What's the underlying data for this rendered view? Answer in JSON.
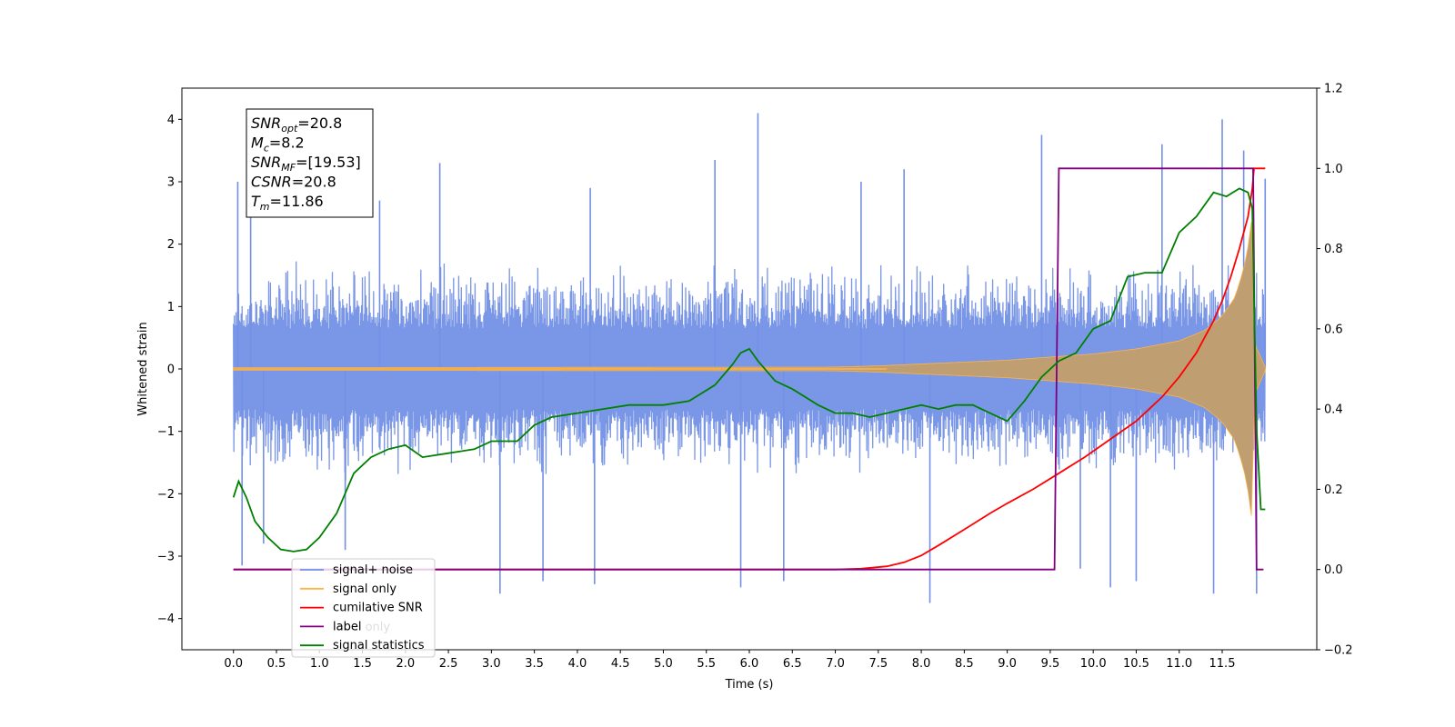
{
  "chart_data": {
    "type": "line",
    "xlabel": "Time (s)",
    "ylabel": "Whitened strain",
    "xlim": [
      -0.6,
      12.6
    ],
    "ylim": [
      -4.5,
      4.5
    ],
    "y2lim": [
      -0.2,
      1.2
    ],
    "x_ticks": [
      "0.0",
      "0.5",
      "1.0",
      "1.5",
      "2.0",
      "2.5",
      "3.0",
      "3.5",
      "4.0",
      "4.5",
      "5.0",
      "5.5",
      "6.0",
      "6.5",
      "7.0",
      "7.5",
      "8.0",
      "8.5",
      "9.0",
      "9.5",
      "10.0",
      "10.5",
      "11.0",
      "11.5"
    ],
    "y_ticks": [
      "4",
      "3",
      "2",
      "1",
      "0",
      "−1",
      "−2",
      "−3",
      "−4"
    ],
    "y2_ticks": [
      "1.2",
      "1.0",
      "0.8",
      "0.6",
      "0.4",
      "0.2",
      "0.0",
      "−0.2"
    ],
    "info_box": [
      {
        "base": "SNR",
        "sub": "opt",
        "value": "=20.8"
      },
      {
        "base": "M",
        "sub": "c",
        "value": "=8.2"
      },
      {
        "base": "SNR",
        "sub": "MF",
        "value": "=[19.53]"
      },
      {
        "base": "CSNR",
        "sub": "",
        "value": "=20.8"
      },
      {
        "base": "T",
        "sub": "m",
        "value": "=11.86"
      }
    ],
    "legend": {
      "placement": "lower-left",
      "entries": [
        {
          "label": "signal+ noise",
          "color": "#7390e6"
        },
        {
          "label": "signal only",
          "color": "#ffb347"
        },
        {
          "label": "cumilative SNR",
          "color": "#ff0000"
        },
        {
          "label": "label",
          "color": "#800080"
        },
        {
          "label": "signal statistics",
          "color": "#008000"
        }
      ],
      "hidden_label": "label only"
    },
    "series": [
      {
        "name": "signal+ noise",
        "axis": "left",
        "color": "#7390e6",
        "t_start": 0.0,
        "t_end": 12.0,
        "envelope": 1.85,
        "spikes": [
          {
            "x": 0.05,
            "y": 3.0
          },
          {
            "x": 0.1,
            "y": -3.15
          },
          {
            "x": 0.2,
            "y": 2.5
          },
          {
            "x": 0.35,
            "y": -2.8
          },
          {
            "x": 1.3,
            "y": -2.9
          },
          {
            "x": 1.7,
            "y": 2.7
          },
          {
            "x": 2.4,
            "y": 3.3
          },
          {
            "x": 3.1,
            "y": -3.6
          },
          {
            "x": 3.6,
            "y": -3.4
          },
          {
            "x": 4.15,
            "y": 2.9
          },
          {
            "x": 4.2,
            "y": -3.45
          },
          {
            "x": 5.6,
            "y": 3.35
          },
          {
            "x": 5.9,
            "y": -3.5
          },
          {
            "x": 6.1,
            "y": 4.1
          },
          {
            "x": 6.4,
            "y": -3.4
          },
          {
            "x": 7.3,
            "y": 3.0
          },
          {
            "x": 7.8,
            "y": 3.2
          },
          {
            "x": 8.1,
            "y": -3.75
          },
          {
            "x": 9.4,
            "y": 3.75
          },
          {
            "x": 9.85,
            "y": -3.2
          },
          {
            "x": 10.2,
            "y": -3.5
          },
          {
            "x": 10.5,
            "y": -3.4
          },
          {
            "x": 10.8,
            "y": 3.6
          },
          {
            "x": 11.4,
            "y": -3.6
          },
          {
            "x": 11.5,
            "y": 4.0
          },
          {
            "x": 11.75,
            "y": 3.5
          },
          {
            "x": 11.9,
            "y": -3.6
          },
          {
            "x": 12.0,
            "y": 3.05
          }
        ]
      },
      {
        "name": "signal only",
        "axis": "left",
        "color": "#ffb347",
        "amplitude": [
          [
            0.0,
            0.02
          ],
          [
            7.0,
            0.03
          ],
          [
            7.5,
            0.05
          ],
          [
            8.0,
            0.08
          ],
          [
            8.5,
            0.11
          ],
          [
            9.0,
            0.14
          ],
          [
            9.5,
            0.19
          ],
          [
            10.0,
            0.24
          ],
          [
            10.5,
            0.32
          ],
          [
            11.0,
            0.45
          ],
          [
            11.3,
            0.62
          ],
          [
            11.5,
            0.85
          ],
          [
            11.65,
            1.15
          ],
          [
            11.75,
            1.6
          ],
          [
            11.82,
            2.1
          ],
          [
            11.86,
            2.6
          ],
          [
            11.88,
            0.4
          ],
          [
            12.0,
            0.03
          ]
        ]
      },
      {
        "name": "cumilative SNR",
        "axis": "right",
        "color": "#ff0000",
        "x": [
          0.0,
          7.0,
          7.3,
          7.6,
          7.8,
          8.0,
          8.2,
          8.5,
          8.8,
          9.0,
          9.3,
          9.6,
          9.9,
          10.2,
          10.5,
          10.8,
          11.0,
          11.2,
          11.4,
          11.5,
          11.6,
          11.7,
          11.8,
          11.85,
          11.87,
          11.92,
          12.0
        ],
        "y": [
          0.0,
          0.0,
          0.002,
          0.008,
          0.018,
          0.035,
          0.06,
          0.1,
          0.14,
          0.165,
          0.2,
          0.24,
          0.28,
          0.325,
          0.37,
          0.43,
          0.48,
          0.54,
          0.62,
          0.67,
          0.73,
          0.8,
          0.88,
          0.95,
          1.0,
          1.0,
          1.0
        ]
      },
      {
        "name": "label",
        "axis": "right",
        "color": "#800080",
        "x": [
          0.0,
          9.55,
          9.6,
          11.86,
          11.9,
          11.98
        ],
        "y": [
          0.0,
          0.0,
          1.0,
          1.0,
          0.0,
          0.0
        ]
      },
      {
        "name": "signal statistics",
        "axis": "right",
        "color": "#008000",
        "x": [
          0.0,
          0.06,
          0.15,
          0.25,
          0.4,
          0.55,
          0.7,
          0.85,
          1.0,
          1.2,
          1.4,
          1.6,
          1.8,
          2.0,
          2.2,
          2.5,
          2.8,
          3.0,
          3.3,
          3.5,
          3.7,
          4.0,
          4.3,
          4.6,
          5.0,
          5.3,
          5.6,
          5.8,
          5.9,
          6.0,
          6.1,
          6.3,
          6.5,
          6.8,
          7.0,
          7.2,
          7.4,
          7.6,
          7.8,
          8.0,
          8.2,
          8.4,
          8.6,
          8.8,
          9.0,
          9.2,
          9.4,
          9.6,
          9.8,
          10.0,
          10.2,
          10.4,
          10.6,
          10.8,
          11.0,
          11.2,
          11.4,
          11.55,
          11.7,
          11.8,
          11.85,
          11.9,
          11.95,
          12.0
        ],
        "y": [
          0.18,
          0.22,
          0.18,
          0.12,
          0.08,
          0.05,
          0.045,
          0.05,
          0.08,
          0.14,
          0.24,
          0.28,
          0.3,
          0.31,
          0.28,
          0.29,
          0.3,
          0.32,
          0.32,
          0.36,
          0.38,
          0.39,
          0.4,
          0.41,
          0.41,
          0.42,
          0.46,
          0.51,
          0.54,
          0.55,
          0.52,
          0.47,
          0.45,
          0.41,
          0.39,
          0.39,
          0.38,
          0.39,
          0.4,
          0.41,
          0.4,
          0.41,
          0.41,
          0.39,
          0.37,
          0.42,
          0.48,
          0.52,
          0.54,
          0.6,
          0.62,
          0.73,
          0.74,
          0.74,
          0.84,
          0.88,
          0.94,
          0.93,
          0.95,
          0.94,
          0.9,
          0.35,
          0.15,
          0.15
        ]
      }
    ]
  }
}
